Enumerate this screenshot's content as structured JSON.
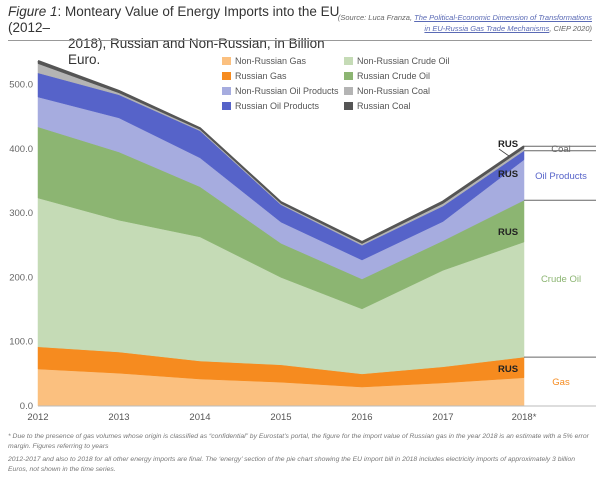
{
  "header": {
    "figure_label": "Figure 1",
    "title_line1": ": Monteary Value of Energy Imports into the EU (2012–",
    "title_line2": "2018), Russian and Non-Russian, in Billion Euro.",
    "source_prefix": "(Source: Luca Franza, ",
    "source_link": "The Political-Economic Dimension of Transformations in EU-Russia Gas Trade Mechanisms",
    "source_suffix": ", CIEP 2020)"
  },
  "footnotes": {
    "note1": "* Due to the presence of gas volumes whose origin is classified as “confidential” by Eurostat’s portal, the figure for the import value of Russian gas in the year 2018 is an estimate with a 5% error margin. Figures referring to years",
    "note2": "2012-2017 and also to 2018 for all other energy imports are final. The ‘energy’ section of the pie chart showing the EU import bill in 2018 includes electricity imports of approximately 3 billion Euros, not shown in the time series."
  },
  "chart_data": {
    "type": "area",
    "stacked": true,
    "title": "Monteary Value of Energy Imports into the EU (2012–2018), Russian and Non-Russian, in Billion Euro.",
    "xlabel": "",
    "ylabel": "",
    "x": [
      "2012",
      "2013",
      "2014",
      "2015",
      "2016",
      "2017",
      "2018*"
    ],
    "ylim": [
      0,
      540
    ],
    "yticks": [
      0,
      100,
      200,
      300,
      400,
      500
    ],
    "ytick_labels": [
      "0.0",
      "100.0",
      "200.0",
      "300.0",
      "400.0",
      "500.0"
    ],
    "grid": false,
    "legend_position": "top-center",
    "series": [
      {
        "name": "Non-Russian Gas",
        "color": "#fbc07f",
        "values": [
          57.5,
          51,
          42,
          37,
          29.5,
          36,
          44
        ]
      },
      {
        "name": "Russian Gas",
        "color": "#f68b1f",
        "values": [
          34.5,
          33,
          28,
          27,
          20.5,
          25,
          32
        ]
      },
      {
        "name": "Non-Russian Crude Oil",
        "color": "#c5dbb6",
        "values": [
          231.5,
          205,
          193,
          136,
          101,
          150,
          179
        ]
      },
      {
        "name": "Russian Crude Oil",
        "color": "#8cb572",
        "values": [
          110.5,
          106,
          78,
          53,
          46.5,
          46,
          65
        ]
      },
      {
        "name": "Non-Russian Oil Products",
        "color": "#a6acdf",
        "values": [
          46.6,
          53,
          45,
          33,
          29.5,
          30,
          63
        ]
      },
      {
        "name": "Russian Oil Products",
        "color": "#5663c9",
        "values": [
          37.4,
          36,
          42,
          27,
          23,
          24,
          14
        ]
      },
      {
        "name": "Non-Russian Coal",
        "color": "#b4b4b4",
        "values": [
          14.5,
          3,
          2,
          2,
          2.5,
          4,
          4
        ]
      },
      {
        "name": "Russian Coal",
        "color": "#555555",
        "values": [
          4,
          3,
          2,
          2,
          2.5,
          3,
          3
        ]
      }
    ],
    "legend_order": [
      0,
      2,
      1,
      3,
      4,
      6,
      5,
      7
    ],
    "annotations": {
      "rus_labels": [
        "RUS",
        "RUS",
        "RUS",
        "RUS"
      ],
      "groups": [
        {
          "label": "Coal",
          "color": "#666666"
        },
        {
          "label": "Oil Products",
          "color": "#5663c9"
        },
        {
          "label": "Crude Oil",
          "color": "#8cb572"
        },
        {
          "label": "Gas",
          "color": "#f68b1f"
        }
      ]
    }
  }
}
